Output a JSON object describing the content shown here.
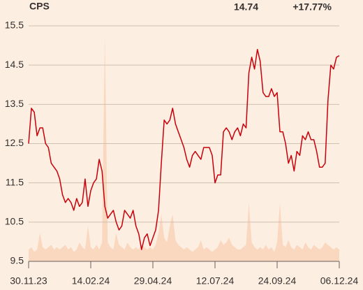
{
  "chart_data": {
    "type": "line",
    "title": "CPS",
    "price": "14.74",
    "change": "+17.77%",
    "color": "#c8000a",
    "volume_color": "#fad7bf",
    "change_color": "#0a9a0a",
    "categories": [
      "30.11.23",
      null,
      null,
      null,
      null,
      null,
      null,
      null,
      null,
      null,
      null,
      null,
      null,
      null,
      null,
      null,
      null,
      null,
      null,
      null,
      null,
      null,
      "14.02.24",
      null,
      null,
      null,
      null,
      null,
      null,
      null,
      null,
      null,
      null,
      null,
      null,
      null,
      null,
      null,
      null,
      null,
      null,
      null,
      null,
      null,
      "29.04.24",
      null,
      null,
      null,
      null,
      null,
      null,
      null,
      null,
      null,
      null,
      null,
      null,
      null,
      null,
      null,
      null,
      null,
      null,
      null,
      null,
      null,
      "12.07.24",
      null,
      null,
      null,
      null,
      null,
      null,
      null,
      null,
      null,
      null,
      null,
      null,
      null,
      null,
      null,
      null,
      null,
      null,
      null,
      null,
      null,
      "24.09.24",
      null,
      null,
      null,
      null,
      null,
      null,
      null,
      null,
      null,
      null,
      null,
      null,
      null,
      null,
      null,
      null,
      null,
      null,
      null,
      null,
      null,
      "06.12.24"
    ],
    "values": [
      12.5,
      13.4,
      13.3,
      12.7,
      12.9,
      12.9,
      12.5,
      12.4,
      12.0,
      11.9,
      11.8,
      11.6,
      11.2,
      11.0,
      11.1,
      11.0,
      10.8,
      11.1,
      10.9,
      11.0,
      11.6,
      10.9,
      11.3,
      11.5,
      11.6,
      12.1,
      11.8,
      10.9,
      10.6,
      10.7,
      10.8,
      10.5,
      10.3,
      10.4,
      10.8,
      10.7,
      10.6,
      10.8,
      10.4,
      10.2,
      9.8,
      10.1,
      10.2,
      9.9,
      10.1,
      10.3,
      10.8,
      12.0,
      13.1,
      13.0,
      13.1,
      13.4,
      13.0,
      12.8,
      12.6,
      12.4,
      12.1,
      11.9,
      12.2,
      12.3,
      12.2,
      12.1,
      12.4,
      12.4,
      12.4,
      12.2,
      11.5,
      11.7,
      11.7,
      12.8,
      12.9,
      12.8,
      12.6,
      12.8,
      12.9,
      12.7,
      13.0,
      12.9,
      14.3,
      14.7,
      14.4,
      14.9,
      14.6,
      13.8,
      13.7,
      13.7,
      13.9,
      13.7,
      13.8,
      12.8,
      12.8,
      12.5,
      12.0,
      12.2,
      11.8,
      12.3,
      12.2,
      12.7,
      12.6,
      12.8,
      12.6,
      12.6,
      12.3,
      11.9,
      11.9,
      12.0,
      13.6,
      14.5,
      14.4,
      14.7,
      14.74
    ],
    "volume": [
      5,
      6,
      4,
      5,
      12,
      6,
      5,
      6,
      7,
      5,
      6,
      5,
      6,
      7,
      5,
      6,
      4,
      5,
      8,
      6,
      5,
      15,
      6,
      5,
      7,
      5,
      8,
      96,
      8,
      6,
      5,
      12,
      7,
      6,
      5,
      8,
      6,
      5,
      6,
      5,
      7,
      6,
      5,
      6,
      5,
      7,
      12,
      20,
      10,
      8,
      15,
      20,
      9,
      7,
      6,
      5,
      6,
      5,
      4,
      5,
      6,
      9,
      5,
      6,
      5,
      4,
      5,
      6,
      9,
      7,
      8,
      10,
      7,
      6,
      5,
      5,
      6,
      7,
      25,
      8,
      6,
      5,
      6,
      5,
      7,
      5,
      6,
      4,
      8,
      25,
      7,
      6,
      9,
      6,
      5,
      7,
      6,
      5,
      8,
      6,
      5,
      7,
      6,
      5,
      6,
      8,
      7,
      6,
      5,
      6,
      5
    ],
    "ylim": [
      9.5,
      15.5
    ],
    "yticks": [
      9.5,
      10.5,
      11.5,
      12.5,
      13.5,
      14.5,
      15.5
    ],
    "y2lim": [
      0,
      100
    ],
    "grid": true
  }
}
